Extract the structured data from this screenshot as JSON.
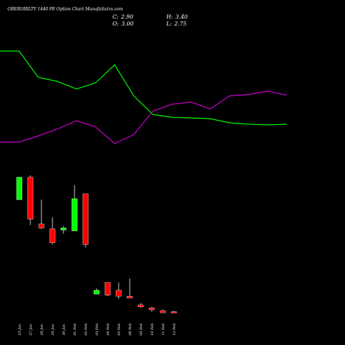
{
  "header": {
    "title": "OBEROIRLTY 1440  PE Option  Chart MunafaSutra.com",
    "close_label": "C:",
    "close_value": "2.90",
    "open_label": "O:",
    "open_value": "3.00",
    "high_label": "H:",
    "high_value": "3.40",
    "low_label": "L:",
    "low_value": "2.75"
  },
  "colors": {
    "background": "#000000",
    "up": "#00ff00",
    "down": "#ff0000",
    "ma_line": "#00ff00",
    "alt_line": "#cc00cc",
    "wick": "#ffffff",
    "text": "#ffffff"
  },
  "chart_data": [
    {
      "type": "candlestick",
      "categories": [
        "23 Jan",
        "27 Jan",
        "28 Jan",
        "29 Jan",
        "30 Jan",
        "01 Feb",
        "02 Feb",
        "03 Feb",
        "04 Feb",
        "05 Feb",
        "06 Feb",
        "09 Feb",
        "10 Feb",
        "11 Feb",
        "12 Feb"
      ],
      "ohlc": [
        {
          "o": 68.5,
          "h": 70.8,
          "l": 68.5,
          "c": 70.8
        },
        {
          "o": 70.8,
          "h": 71.0,
          "l": 65.9,
          "c": 66.5
        },
        {
          "o": 66.0,
          "h": 68.5,
          "l": 65.5,
          "c": 65.6
        },
        {
          "o": 65.5,
          "h": 66.7,
          "l": 63.9,
          "c": 64.1
        },
        {
          "o": 65.4,
          "h": 65.8,
          "l": 65.0,
          "c": 65.6
        },
        {
          "o": 65.3,
          "h": 70.0,
          "l": 65.3,
          "c": 68.6
        },
        {
          "o": 69.1,
          "h": 69.1,
          "l": 63.6,
          "c": 63.9
        },
        {
          "o": 58.8,
          "h": 59.4,
          "l": 58.8,
          "c": 59.2
        },
        {
          "o": 60.0,
          "h": 60.0,
          "l": 58.6,
          "c": 58.7
        },
        {
          "o": 59.2,
          "h": 60.0,
          "l": 58.3,
          "c": 58.6
        },
        {
          "o": 58.6,
          "h": 60.4,
          "l": 58.4,
          "c": 58.4
        },
        {
          "o": 57.7,
          "h": 57.9,
          "l": 57.4,
          "c": 57.5
        },
        {
          "o": 57.4,
          "h": 57.5,
          "l": 57.0,
          "c": 57.2
        },
        {
          "o": 57.1,
          "h": 57.2,
          "l": 56.9,
          "c": 56.9
        },
        {
          "o": 57.0,
          "h": 57.1,
          "l": 56.9,
          "c": 56.9
        }
      ],
      "ylim": [
        55.0,
        72.0
      ]
    },
    {
      "type": "line",
      "x": [
        "",
        "23 Jan",
        "27 Jan",
        "28 Jan",
        "29 Jan",
        "30 Jan",
        "01 Feb",
        "02 Feb",
        "03 Feb",
        "04 Feb",
        "05 Feb",
        "06 Feb",
        "09 Feb",
        "10 Feb",
        "11 Feb",
        "12 Feb"
      ],
      "series": [
        {
          "values": [
            93.0,
            93.0,
            74.0,
            71.0,
            65.5,
            70.0,
            83.0,
            60.5,
            47.0,
            45.0,
            44.5,
            44.0,
            41.0,
            40.0,
            39.5,
            40.0
          ]
        },
        {
          "values": [
            27.0,
            27.0,
            31.5,
            36.5,
            42.5,
            38.0,
            26.0,
            32.5,
            49.5,
            54.5,
            56.0,
            51.0,
            60.5,
            61.5,
            64.0,
            61.0
          ]
        }
      ],
      "ylim": [
        0,
        100
      ]
    }
  ]
}
